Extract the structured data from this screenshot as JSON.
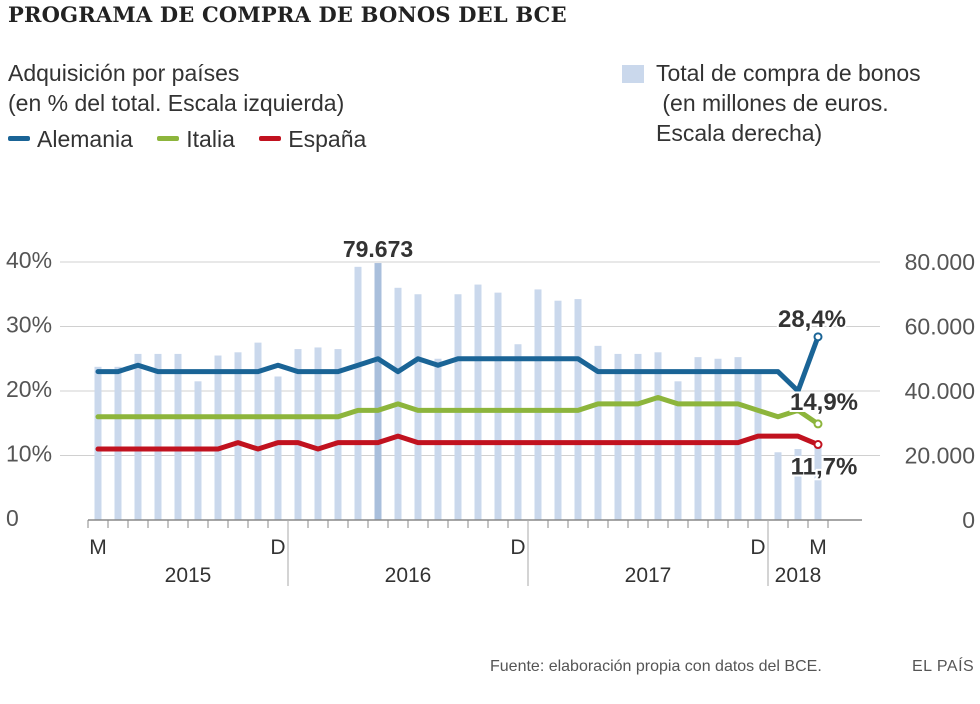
{
  "title": "PROGRAMA DE COMPRA DE BONOS DEL BCE",
  "legend": {
    "left_line1": "Adquisición por países",
    "left_line2": "(en % del total. Escala izquierda)",
    "right_line1": "Total de compra de bonos",
    "right_line2": " (en millones de euros.",
    "right_line3": "Escala derecha)"
  },
  "colors": {
    "alemania": "#1a6496",
    "italia": "#8db53c",
    "espana": "#c1121f",
    "bars": "#cad8ec",
    "bar_highlight": "#a9bfdc",
    "grid": "#d0d0d0",
    "axis_text": "#555555"
  },
  "source": "Fuente: elaboración propia con datos del BCE.",
  "brand": "EL PAÍS",
  "chart_data": {
    "type": "bar+line",
    "title": "PROGRAMA DE COMPRA DE BONOS DEL BCE",
    "y_left": {
      "label": "Adquisición por países (en % del total)",
      "ticks": [
        "40%",
        "30%",
        "20%",
        "10%",
        "0"
      ],
      "range": [
        0,
        40
      ]
    },
    "y_right": {
      "label": "Total de compra de bonos (en millones de euros)",
      "ticks": [
        "80.000",
        "60.000",
        "40.000",
        "20.000",
        "0"
      ],
      "range": [
        0,
        80000
      ]
    },
    "x_tick_labels": [
      {
        "label": "M",
        "month_index": 0
      },
      {
        "label": "D",
        "month_index": 9
      },
      {
        "label": "D",
        "month_index": 21
      },
      {
        "label": "D",
        "month_index": 33
      },
      {
        "label": "M",
        "month_index": 36
      }
    ],
    "years": [
      "2015",
      "2016",
      "2017",
      "2018"
    ],
    "months": [
      "2015-03",
      "2015-04",
      "2015-05",
      "2015-06",
      "2015-07",
      "2015-08",
      "2015-09",
      "2015-10",
      "2015-11",
      "2015-12",
      "2016-01",
      "2016-02",
      "2016-03",
      "2016-04",
      "2016-05",
      "2016-06",
      "2016-07",
      "2016-08",
      "2016-09",
      "2016-10",
      "2016-11",
      "2016-12",
      "2017-01",
      "2017-02",
      "2017-03",
      "2017-04",
      "2017-05",
      "2017-06",
      "2017-07",
      "2017-08",
      "2017-09",
      "2017-10",
      "2017-11",
      "2017-12",
      "2018-01",
      "2018-02",
      "2018-03"
    ],
    "bars": {
      "name": "Total de compra de bonos",
      "values": [
        47500,
        47500,
        51500,
        51500,
        51500,
        43000,
        51000,
        52000,
        55000,
        44500,
        53000,
        53500,
        53000,
        78500,
        79673,
        72000,
        70000,
        50000,
        70000,
        73000,
        70500,
        54500,
        71500,
        68000,
        68500,
        54000,
        51500,
        51500,
        52000,
        43000,
        50500,
        50000,
        50500,
        45500,
        21000,
        22000,
        24000
      ]
    },
    "highlight": {
      "month_index": 14,
      "label": "79.673"
    },
    "series": [
      {
        "name": "Alemania",
        "values": [
          23,
          23,
          24,
          23,
          23,
          23,
          23,
          23,
          23,
          24,
          23,
          23,
          23,
          24,
          25,
          23,
          25,
          24,
          25,
          25,
          25,
          25,
          25,
          25,
          25,
          23,
          23,
          23,
          23,
          23,
          23,
          23,
          23,
          23,
          23,
          20,
          28.4
        ],
        "end_label": "28,4%"
      },
      {
        "name": "Italia",
        "values": [
          16,
          16,
          16,
          16,
          16,
          16,
          16,
          16,
          16,
          16,
          16,
          16,
          16,
          17,
          17,
          18,
          17,
          17,
          17,
          17,
          17,
          17,
          17,
          17,
          17,
          18,
          18,
          18,
          19,
          18,
          18,
          18,
          18,
          17,
          16,
          17,
          14.9
        ],
        "end_label": "14,9%"
      },
      {
        "name": "España",
        "values": [
          11,
          11,
          11,
          11,
          11,
          11,
          11,
          12,
          11,
          12,
          12,
          11,
          12,
          12,
          12,
          13,
          12,
          12,
          12,
          12,
          12,
          12,
          12,
          12,
          12,
          12,
          12,
          12,
          12,
          12,
          12,
          12,
          12,
          13,
          13,
          13,
          11.7
        ],
        "end_label": "11,7%"
      }
    ]
  }
}
